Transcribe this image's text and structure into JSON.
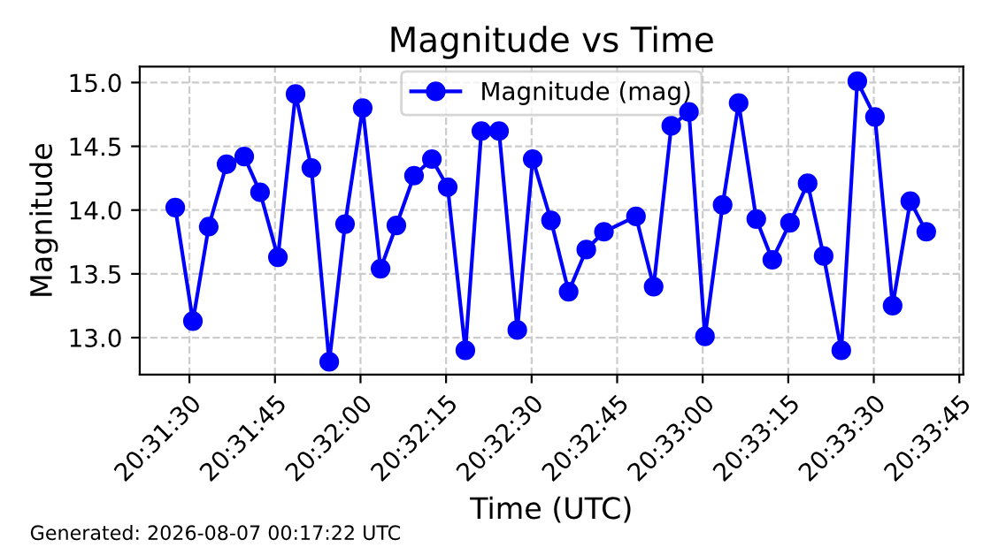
{
  "chart_data": {
    "type": "line",
    "title": "Magnitude vs Time",
    "xlabel": "Time (UTC)",
    "ylabel": "Magnitude",
    "x": [
      20.52431,
      20.52517,
      20.52594,
      20.52681,
      20.52767,
      20.52844,
      20.52931,
      20.53017,
      20.53094,
      20.53181,
      20.53258,
      20.53344,
      20.53431,
      20.53508,
      20.53594,
      20.53681,
      20.53758,
      20.53844,
      20.53922,
      20.54008,
      20.54097,
      20.54172,
      20.54261,
      20.54347,
      20.54433,
      20.54519,
      20.54675,
      20.54761,
      20.54847,
      20.54933,
      20.55011,
      20.55097,
      20.55175,
      20.55261,
      20.55339,
      20.55425,
      20.55511,
      20.55589,
      20.55675,
      20.55753,
      20.55839,
      20.55925,
      20.56011,
      20.56089
    ],
    "series": [
      {
        "name": "Magnitude (mag)",
        "color": "#0000ff",
        "values": [
          14.02,
          13.13,
          13.87,
          14.36,
          14.42,
          14.14,
          13.63,
          14.91,
          14.33,
          12.81,
          13.89,
          14.8,
          13.54,
          13.88,
          14.27,
          14.4,
          14.18,
          12.9,
          14.62,
          14.62,
          13.06,
          14.4,
          13.92,
          13.36,
          13.69,
          13.83,
          13.95,
          13.4,
          14.66,
          14.77,
          13.01,
          14.04,
          14.84,
          13.93,
          13.61,
          13.9,
          14.21,
          13.64,
          12.9,
          15.01,
          14.73,
          13.25,
          14.07,
          13.83
        ]
      }
    ],
    "xlim": [
      20.52258,
      20.56269
    ],
    "xticks": [
      {
        "value": 20.525,
        "label": "20:31:30"
      },
      {
        "value": 20.529167,
        "label": "20:31:45"
      },
      {
        "value": 20.533333,
        "label": "20:32:00"
      },
      {
        "value": 20.5375,
        "label": "20:32:15"
      },
      {
        "value": 20.541667,
        "label": "20:32:30"
      },
      {
        "value": 20.545833,
        "label": "20:32:45"
      },
      {
        "value": 20.55,
        "label": "20:33:00"
      },
      {
        "value": 20.554167,
        "label": "20:33:15"
      },
      {
        "value": 20.558333,
        "label": "20:33:30"
      },
      {
        "value": 20.5625,
        "label": "20:33:45"
      }
    ],
    "ylim": [
      12.71,
      15.125
    ],
    "yticks": [
      {
        "value": 13,
        "label": "13.0"
      },
      {
        "value": 13.5,
        "label": "13.5"
      },
      {
        "value": 14,
        "label": "14.0"
      },
      {
        "value": 14.5,
        "label": "14.5"
      },
      {
        "value": 15,
        "label": "15.0"
      }
    ],
    "grid": true,
    "legend": "top",
    "marker": "circle",
    "line_style": "solid",
    "annotations": [
      "Generated: 2026-08-07 00:17:22 UTC"
    ]
  }
}
